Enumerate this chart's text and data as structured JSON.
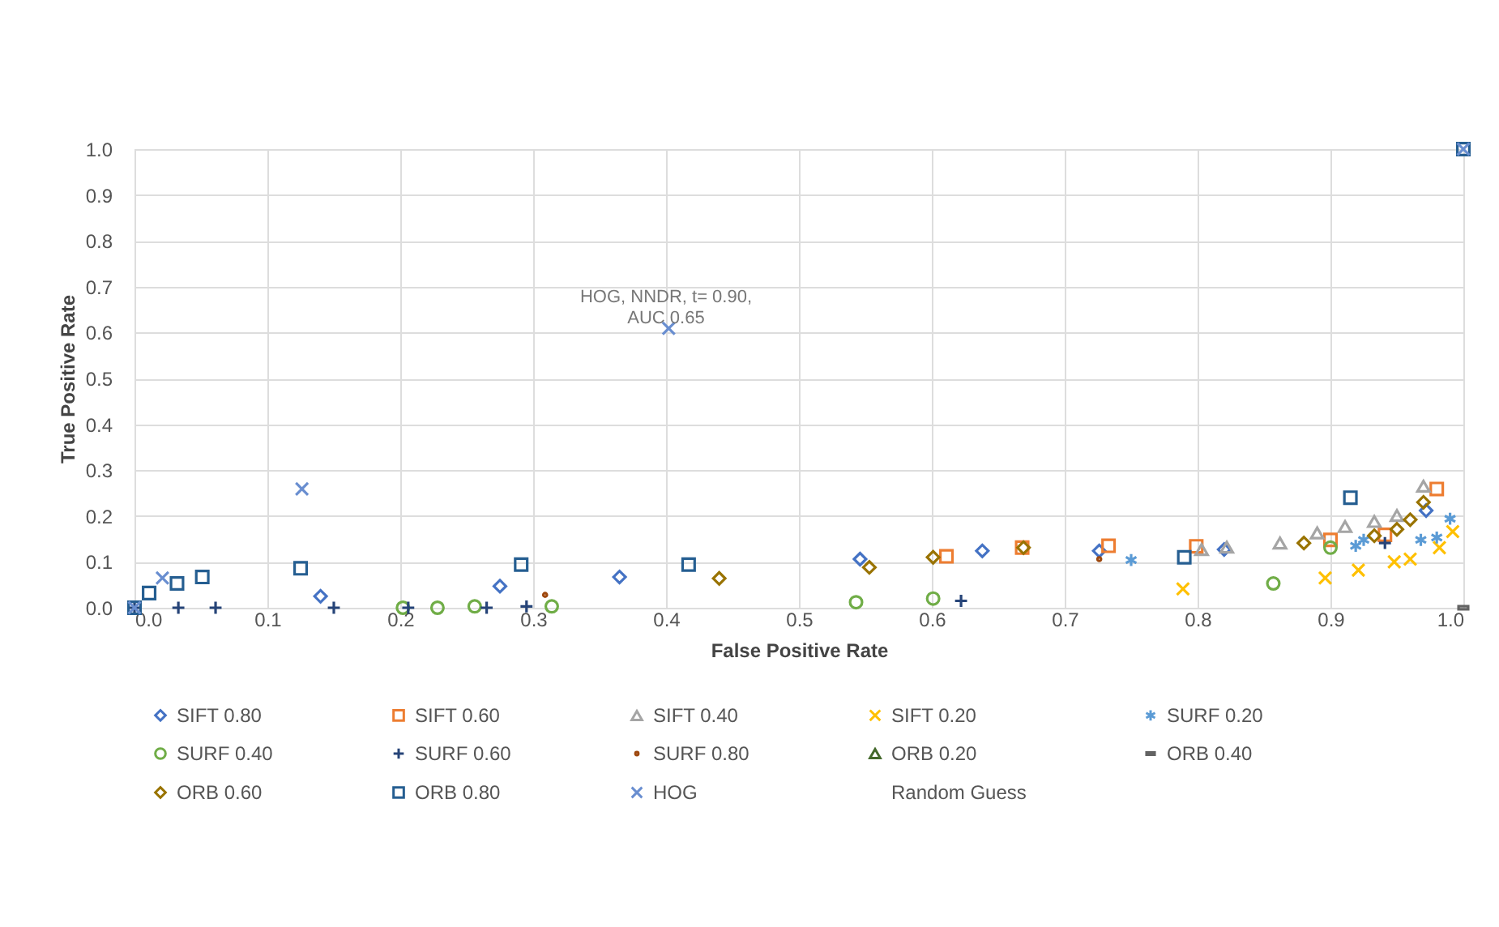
{
  "chart_data": {
    "type": "scatter",
    "xlabel": "False Positive Rate",
    "ylabel": "True Positive Rate",
    "xlim": [
      0,
      1
    ],
    "ylim": [
      0,
      1
    ],
    "xticks": [
      {
        "value": 0,
        "label": "0.0"
      },
      0.1,
      0.2,
      0.3,
      0.4,
      0.5,
      0.6,
      0.7,
      0.8,
      0.9,
      {
        "value": 1,
        "label": "1.0"
      }
    ],
    "yticks": [
      {
        "value": 0,
        "label": "0.0"
      },
      0.1,
      0.2,
      0.3,
      0.4,
      0.5,
      0.6,
      0.7,
      0.8,
      0.9,
      {
        "value": 1,
        "label": "1.0"
      }
    ],
    "grid": true,
    "legend": "bottom",
    "annotations": [
      {
        "text": "HOG, NNDR, t= 0.90,\nAUC 0.65",
        "x": 0.4,
        "y": 0.61
      }
    ],
    "series": [
      {
        "name": "SIFT 0.80",
        "color": "#4472c4",
        "marker": "diamond",
        "x": [
          0.14,
          0.275,
          0.365,
          0.546,
          0.638,
          0.726,
          0.82,
          0.972
        ],
        "values": [
          0.025,
          0.047,
          0.067,
          0.106,
          0.124,
          0.124,
          0.127,
          0.212
        ]
      },
      {
        "name": "SIFT 0.60",
        "color": "#ed7d31",
        "marker": "square",
        "x": [
          0.611,
          0.668,
          0.733,
          0.799,
          0.9,
          0.941,
          0.98
        ],
        "values": [
          0.112,
          0.131,
          0.135,
          0.134,
          0.148,
          0.159,
          0.259
        ]
      },
      {
        "name": "SIFT 0.40",
        "color": "#a5a5a5",
        "marker": "triangle",
        "x": [
          0.803,
          0.822,
          0.862,
          0.89,
          0.911,
          0.933,
          0.95,
          0.97
        ],
        "values": [
          0.127,
          0.132,
          0.141,
          0.163,
          0.177,
          0.188,
          0.201,
          0.265
        ]
      },
      {
        "name": "SIFT 0.20",
        "color": "#ffc000",
        "marker": "x",
        "x": [
          0.789,
          0.896,
          0.921,
          0.948,
          0.96,
          0.982,
          0.992
        ],
        "values": [
          0.041,
          0.065,
          0.082,
          0.1,
          0.106,
          0.131,
          0.166
        ]
      },
      {
        "name": "SURF 0.20",
        "color": "#5b9bd5",
        "marker": "cross",
        "x": [
          0.75,
          0.919,
          0.925,
          0.968,
          0.98,
          0.99
        ],
        "values": [
          0.104,
          0.135,
          0.148,
          0.148,
          0.153,
          0.194
        ]
      },
      {
        "name": "SURF 0.40",
        "color": "#70ad47",
        "marker": "circle",
        "x": [
          0.202,
          0.228,
          0.256,
          0.314,
          0.543,
          0.601,
          0.857,
          0.9
        ],
        "values": [
          0.0,
          0.0,
          0.003,
          0.003,
          0.012,
          0.02,
          0.053,
          0.131
        ]
      },
      {
        "name": "SURF 0.60",
        "color": "#264478",
        "marker": "cross",
        "x": [
          0.0,
          0.033,
          0.061,
          0.15,
          0.206,
          0.265,
          0.295,
          0.622,
          0.941
        ],
        "values": [
          0.0,
          0.0,
          0.0,
          0.0,
          0.0,
          0.0,
          0.003,
          0.015,
          0.141
        ]
      },
      {
        "name": "SURF 0.80",
        "color": "#9e480e",
        "marker": "dot",
        "x": [
          0.309,
          0.726
        ],
        "values": [
          0.028,
          0.106
        ]
      },
      {
        "name": "ORB 0.20",
        "color": "#43682b",
        "marker": "triangle"
      },
      {
        "name": "ORB 0.40",
        "color": "#636363",
        "marker": "square",
        "x": [
          1.0
        ],
        "values": [
          0.0
        ]
      },
      {
        "name": "ORB 0.60",
        "color": "#997300",
        "marker": "diamond",
        "x": [
          0.44,
          0.553,
          0.601,
          0.669,
          0.88,
          0.933,
          0.95,
          0.96,
          0.97
        ],
        "values": [
          0.064,
          0.088,
          0.11,
          0.131,
          0.141,
          0.157,
          0.171,
          0.192,
          0.23
        ]
      },
      {
        "name": "ORB 0.80",
        "color": "#255e91",
        "marker": "square",
        "x": [
          0.0,
          0.011,
          0.032,
          0.051,
          0.125,
          0.291,
          0.417,
          0.79,
          0.915,
          1.0
        ],
        "values": [
          0.0,
          0.032,
          0.053,
          0.067,
          0.086,
          0.094,
          0.094,
          0.11,
          0.24,
          1.0
        ]
      },
      {
        "name": "HOG",
        "color": "#698ed0",
        "marker": "x",
        "x": [
          0.0,
          0.021,
          0.126,
          0.402,
          1.0
        ],
        "values": [
          0.0,
          0.065,
          0.259,
          0.609,
          1.0
        ]
      },
      {
        "name": "Random Guess",
        "marker": "none"
      }
    ]
  }
}
